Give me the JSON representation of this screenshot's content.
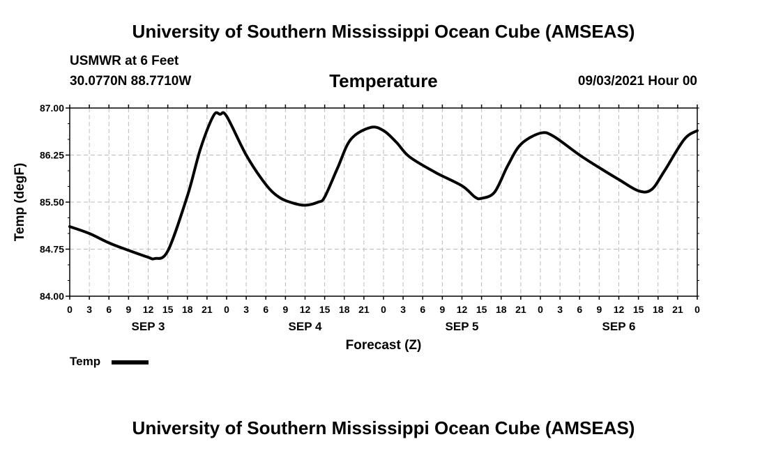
{
  "header": {
    "title": "University of Southern Mississippi Ocean Cube (AMSEAS)",
    "station": "USMWR at 6 Feet",
    "coords": "30.0770N  88.7710W",
    "variable": "Temperature",
    "datestamp": "09/03/2021 Hour 00"
  },
  "footer": {
    "title": "University of Southern Mississippi Ocean Cube (AMSEAS)"
  },
  "legend": {
    "label": "Temp"
  },
  "colors": {
    "line": "#000000",
    "grid": "#bbbbbb",
    "background": "#ffffff"
  },
  "chart_data": {
    "type": "line",
    "title": "Temperature",
    "xlabel": "Forecast (Z)",
    "ylabel": "Temp (degF)",
    "xlim": [
      0,
      96
    ],
    "ylim": [
      84.0,
      87.0
    ],
    "yticks": [
      "84.00",
      "84.75",
      "85.50",
      "86.25",
      "87.00"
    ],
    "xtick_hours": [
      0,
      3,
      6,
      9,
      12,
      15,
      18,
      21,
      24,
      27,
      30,
      33,
      36,
      39,
      42,
      45,
      48,
      51,
      54,
      57,
      60,
      63,
      66,
      69,
      72,
      75,
      78,
      81,
      84,
      87,
      90,
      93,
      96
    ],
    "xtick_labels": [
      "0",
      "3",
      "6",
      "9",
      "12",
      "15",
      "18",
      "21",
      "0",
      "3",
      "6",
      "9",
      "12",
      "15",
      "18",
      "21",
      "0",
      "3",
      "6",
      "9",
      "12",
      "15",
      "18",
      "21",
      "0",
      "3",
      "6",
      "9",
      "12",
      "15",
      "18",
      "21",
      "0"
    ],
    "date_labels": [
      {
        "label": "SEP 3",
        "hour": 12
      },
      {
        "label": "SEP 4",
        "hour": 36
      },
      {
        "label": "SEP 5",
        "hour": 60
      },
      {
        "label": "SEP 6",
        "hour": 84
      }
    ],
    "grid": true,
    "series": [
      {
        "name": "Temp",
        "x": [
          0,
          3,
          6,
          9,
          12,
          13,
          15,
          18,
          20,
          22,
          23,
          24,
          27,
          30,
          32,
          34,
          36,
          38,
          39,
          41,
          43,
          46,
          48,
          50,
          52,
          56,
          60,
          62,
          63,
          65,
          67,
          69,
          72,
          74,
          78,
          81,
          84,
          87,
          89,
          91,
          94,
          96
        ],
        "y": [
          85.11,
          85.0,
          84.85,
          84.73,
          84.62,
          84.6,
          84.72,
          85.6,
          86.35,
          86.88,
          86.9,
          86.87,
          86.25,
          85.78,
          85.58,
          85.49,
          85.45,
          85.5,
          85.58,
          86.05,
          86.5,
          86.69,
          86.64,
          86.45,
          86.22,
          85.97,
          85.76,
          85.58,
          85.56,
          85.66,
          86.08,
          86.42,
          86.6,
          86.55,
          86.25,
          86.05,
          85.86,
          85.68,
          85.7,
          86.0,
          86.5,
          86.64
        ]
      }
    ]
  }
}
